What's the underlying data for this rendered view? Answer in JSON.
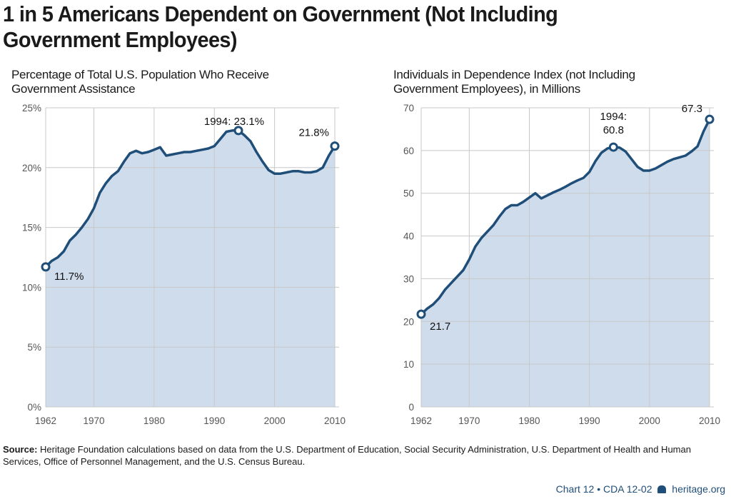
{
  "title": "1 in 5 Americans Dependent on Government (Not Including Government Employees)",
  "source_label": "Source:",
  "source_text": "Heritage Foundation calculations based on data from the U.S. Department of Education, Social Security Administration, U.S. Department of Health and Human Services, Office of Personnel Management, and the U.S. Census Bureau.",
  "credit": {
    "chart": "Chart 12 • CDA 12-02",
    "logo_icon": "liberty-bell-icon",
    "site": "heritage.org"
  },
  "colors": {
    "line": "#1f4e79",
    "fill": "#cfdcec",
    "grid": "#c8c8c8"
  },
  "chart_data": [
    {
      "type": "area",
      "title": "Percentage of Total U.S. Population Who Receive Government Assistance",
      "x": [
        1962,
        1963,
        1964,
        1965,
        1966,
        1967,
        1968,
        1969,
        1970,
        1971,
        1972,
        1973,
        1974,
        1975,
        1976,
        1977,
        1978,
        1979,
        1980,
        1981,
        1982,
        1983,
        1984,
        1985,
        1986,
        1987,
        1988,
        1989,
        1990,
        1991,
        1992,
        1993,
        1994,
        1995,
        1996,
        1997,
        1998,
        1999,
        2000,
        2001,
        2002,
        2003,
        2004,
        2005,
        2006,
        2007,
        2008,
        2009,
        2010
      ],
      "values": [
        11.7,
        12.2,
        12.5,
        13.0,
        13.9,
        14.4,
        15.0,
        15.7,
        16.6,
        17.9,
        18.7,
        19.3,
        19.7,
        20.5,
        21.2,
        21.4,
        21.2,
        21.3,
        21.5,
        21.7,
        21.0,
        21.1,
        21.2,
        21.3,
        21.3,
        21.4,
        21.5,
        21.6,
        21.8,
        22.4,
        23.0,
        23.1,
        23.1,
        22.7,
        22.2,
        21.3,
        20.5,
        19.8,
        19.5,
        19.5,
        19.6,
        19.7,
        19.7,
        19.6,
        19.6,
        19.7,
        20.0,
        21.0,
        21.8
      ],
      "xticks": [
        "1962",
        "1970",
        "1980",
        "1990",
        "2000",
        "2010"
      ],
      "yticks": [
        "0%",
        "5%",
        "10%",
        "15%",
        "20%",
        "25%"
      ],
      "ylim": [
        0,
        25
      ],
      "grid": true,
      "annotations": [
        {
          "x": 1962,
          "y": 11.7,
          "label": "11.7%"
        },
        {
          "x": 1994,
          "y": 23.1,
          "label": "1994: 23.1%"
        },
        {
          "x": 2010,
          "y": 21.8,
          "label": "21.8%"
        }
      ]
    },
    {
      "type": "area",
      "title": "Individuals in Dependence Index (not Including Government Employees), in Millions",
      "x": [
        1962,
        1963,
        1964,
        1965,
        1966,
        1967,
        1968,
        1969,
        1970,
        1971,
        1972,
        1973,
        1974,
        1975,
        1976,
        1977,
        1978,
        1979,
        1980,
        1981,
        1982,
        1983,
        1984,
        1985,
        1986,
        1987,
        1988,
        1989,
        1990,
        1991,
        1992,
        1993,
        1994,
        1995,
        1996,
        1997,
        1998,
        1999,
        2000,
        2001,
        2002,
        2003,
        2004,
        2005,
        2006,
        2007,
        2008,
        2009,
        2010
      ],
      "values": [
        21.7,
        23,
        24,
        25.5,
        27.5,
        29,
        30.5,
        32,
        34.5,
        37.5,
        39.5,
        41,
        42.5,
        44.5,
        46.3,
        47.2,
        47.2,
        48,
        49,
        50,
        48.8,
        49.5,
        50.2,
        50.8,
        51.5,
        52.3,
        53,
        53.6,
        55,
        57.5,
        59.5,
        60.5,
        60.8,
        60.7,
        59.8,
        58,
        56.2,
        55.3,
        55.3,
        55.8,
        56.6,
        57.4,
        58,
        58.4,
        58.8,
        59.8,
        61,
        64.5,
        67.3
      ],
      "xticks": [
        "1962",
        "1970",
        "1980",
        "1990",
        "2000",
        "2010"
      ],
      "yticks": [
        "0",
        "10",
        "20",
        "30",
        "40",
        "50",
        "60",
        "70"
      ],
      "ylim": [
        0,
        70
      ],
      "grid": true,
      "annotations": [
        {
          "x": 1962,
          "y": 21.7,
          "label": "21.7"
        },
        {
          "x": 1994,
          "y": 60.8,
          "label": "1994:\n60.8"
        },
        {
          "x": 2010,
          "y": 67.3,
          "label": "67.3"
        }
      ]
    }
  ]
}
